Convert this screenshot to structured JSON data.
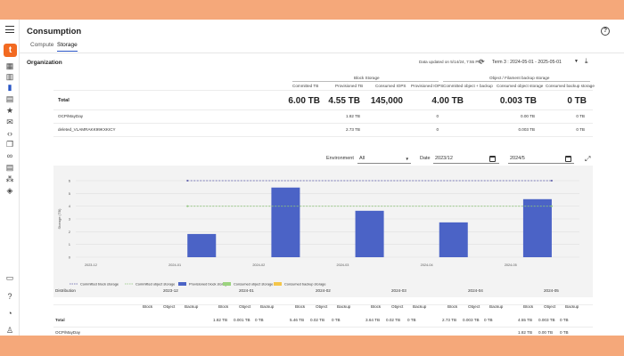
{
  "app": {
    "title": "Consumption",
    "logo_letter": "t"
  },
  "sidebar": {
    "items": [
      {
        "name": "grid-icon",
        "glyph": "▦"
      },
      {
        "name": "building-icon",
        "glyph": "▥"
      },
      {
        "name": "bar-chart-icon",
        "glyph": "▮"
      },
      {
        "name": "calculator-icon",
        "glyph": "▤"
      },
      {
        "name": "star-icon",
        "glyph": "★"
      },
      {
        "name": "mail-icon",
        "glyph": "✉"
      },
      {
        "name": "code-icon",
        "glyph": "‹›"
      },
      {
        "name": "copy-icon",
        "glyph": "❐"
      },
      {
        "name": "link-icon",
        "glyph": "∞"
      },
      {
        "name": "server-icon",
        "glyph": "▤"
      },
      {
        "name": "network-icon",
        "glyph": "⁂"
      },
      {
        "name": "cube-icon",
        "glyph": "◈"
      }
    ],
    "bottom": [
      {
        "name": "chat-icon",
        "glyph": "▭"
      },
      {
        "name": "help-circle-icon",
        "glyph": "?"
      },
      {
        "name": "bell-icon",
        "glyph": "◔"
      },
      {
        "name": "user-icon",
        "glyph": "♙"
      }
    ]
  },
  "tabs": [
    "Compute",
    "Storage"
  ],
  "organization": {
    "label": "Organization",
    "updated": "Data updated on 5/14/24, 7:55 PM",
    "term": "Term 3 : 2024-05-01 - 2025-05-01"
  },
  "summary": {
    "block_group": "Block Storage",
    "object_group": "Object / Filament backup storage",
    "headers": [
      "Committed TB",
      "Provisioned TB",
      "Consumed IOPS",
      "Provisioned IOPS",
      "Committed object + backup",
      "Consumed object storage",
      "Consumed backup storage"
    ],
    "total": {
      "label": "Total",
      "values": [
        "6.00 TB",
        "4.55 TB",
        "145,000",
        "",
        "4.00 TB",
        "0.003 TB",
        "0 TB"
      ]
    },
    "rows": [
      {
        "label": "OCP/MayDay",
        "values": [
          "",
          "1.82 TB",
          "",
          "0",
          "",
          "0.00 TB",
          "0 TB"
        ]
      },
      {
        "label": "deleted_VLAMRAKK99KXKICY",
        "values": [
          "",
          "2.73 TB",
          "",
          "0",
          "",
          "0.003 TB",
          "0 TB"
        ]
      }
    ]
  },
  "filters": {
    "environment_label": "Environment",
    "environment_value": "All",
    "date_label": "Date",
    "date_from": "2023/12",
    "date_to": "2024/5"
  },
  "chart_data": {
    "type": "bar",
    "categories": [
      "2023-12",
      "2024-01",
      "2024-02",
      "2024-03",
      "2024-04",
      "2024-05"
    ],
    "ylabel": "Storage (TB)",
    "ylim": [
      0,
      6
    ],
    "yticks": [
      0,
      1,
      2,
      3,
      4,
      5,
      6
    ],
    "series": [
      {
        "name": "Provisioned block storage",
        "values": [
          0,
          1.82,
          5.46,
          3.64,
          2.73,
          4.55
        ],
        "color": "#4b63c6"
      }
    ],
    "lines": [
      {
        "name": "Committed block storage",
        "value": 6,
        "color": "#5b5ba8",
        "style": "dashed"
      },
      {
        "name": "Committed object storage",
        "value": 4,
        "color": "#8dc47a",
        "style": "dashed"
      }
    ],
    "legend": [
      {
        "name": "Committed block storage",
        "color": "#5b5ba8",
        "kind": "dash"
      },
      {
        "name": "Committed object storage",
        "color": "#8dc47a",
        "kind": "dash"
      },
      {
        "name": "Provisioned block storage",
        "color": "#4b63c6",
        "kind": "box"
      },
      {
        "name": "Consumed object storage",
        "color": "#9bd37e",
        "kind": "box"
      },
      {
        "name": "Consumed backup storage",
        "color": "#f4c64a",
        "kind": "box"
      }
    ],
    "legend_position": "bottom-left",
    "grid": true
  },
  "distribution": {
    "label": "Distribution",
    "months": [
      "2023-12",
      "2024-01",
      "2024-02",
      "2024-03",
      "2024-04",
      "2024-05"
    ],
    "subheaders": [
      "Block",
      "Object",
      "Backup"
    ],
    "total_label": "Total",
    "total_values": [
      "",
      "",
      "",
      "1.82 TB",
      "0.001 TB",
      "0 TB",
      "5.46 TB",
      "0.02 TB",
      "0 TB",
      "3.64 TB",
      "0.02 TB",
      "0 TB",
      "2.73 TB",
      "0.003 TB",
      "0 TB",
      "4.55 TB",
      "0.003 TB",
      "0 TB"
    ],
    "next_row_label": "OCP/MayDay",
    "next_row_values": [
      "1.82 TB",
      "0.00 TB",
      "0 TB"
    ]
  }
}
